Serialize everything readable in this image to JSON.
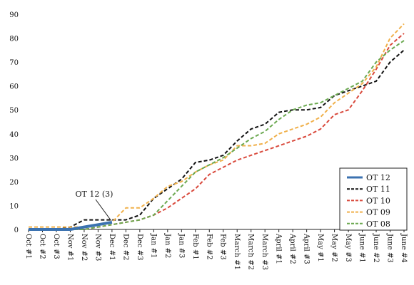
{
  "chart_data": {
    "type": "line",
    "x": [
      "Oct #1",
      "Oct #2",
      "Oct #3",
      "Nov #1",
      "Nov #2",
      "Nov #3",
      "Dec #1",
      "Dec #2",
      "Dec #3",
      "Jan #1",
      "Jan #2",
      "Jan #3",
      "Feb #1",
      "Feb #2",
      "Feb #3",
      "March #1",
      "March #2",
      "March #3",
      "April #1",
      "April #2",
      "April #3",
      "May #1",
      "May #2",
      "May #3",
      "June #1",
      "June #2",
      "June #3",
      "June #4"
    ],
    "ylim": [
      0,
      90
    ],
    "yticks": [
      0,
      10,
      20,
      30,
      40,
      50,
      60,
      70,
      80,
      90
    ],
    "grid": false,
    "legend_position": "bottom-right",
    "series": [
      {
        "name": "OT 12",
        "color": "#3b72b0",
        "style": "solid",
        "values": [
          0,
          0,
          0,
          0,
          1,
          2,
          3,
          null,
          null,
          null,
          null,
          null,
          null,
          null,
          null,
          null,
          null,
          null,
          null,
          null,
          null,
          null,
          null,
          null,
          null,
          null,
          null,
          null
        ]
      },
      {
        "name": "OT 11",
        "color": "#111111",
        "style": "dashed",
        "values": [
          0,
          0,
          0,
          1,
          4,
          4,
          4,
          4,
          6,
          13,
          17,
          21,
          28,
          29,
          31,
          37,
          42,
          44,
          49,
          50,
          50,
          51,
          56,
          58,
          60,
          62,
          70,
          75
        ]
      },
      {
        "name": "OT 10",
        "color": "#d94a3d",
        "style": "dashed",
        "values": [
          0,
          0,
          0,
          0,
          0,
          1,
          2,
          3,
          4,
          6,
          9,
          13,
          17,
          23,
          26,
          29,
          31,
          33,
          35,
          37,
          39,
          42,
          48,
          50,
          58,
          67,
          77,
          82
        ]
      },
      {
        "name": "OT 09",
        "color": "#f0b04a",
        "style": "dashed",
        "values": [
          1,
          1,
          1,
          1,
          1,
          2,
          3,
          9,
          9,
          13,
          18,
          20,
          24,
          27,
          29,
          35,
          35,
          36,
          40,
          42,
          44,
          47,
          53,
          57,
          61,
          68,
          80,
          86
        ]
      },
      {
        "name": "OT 08",
        "color": "#6aa84f",
        "style": "dashed",
        "values": [
          0,
          0,
          0,
          0,
          0,
          1,
          2,
          3,
          4,
          6,
          12,
          18,
          24,
          27,
          30,
          34,
          38,
          41,
          46,
          50,
          52,
          53,
          56,
          59,
          62,
          70,
          75,
          79
        ]
      }
    ],
    "annotations": [
      {
        "text": "OT 12 (3)",
        "series": "OT 12",
        "x": "Dec #1",
        "y": 3
      }
    ]
  }
}
